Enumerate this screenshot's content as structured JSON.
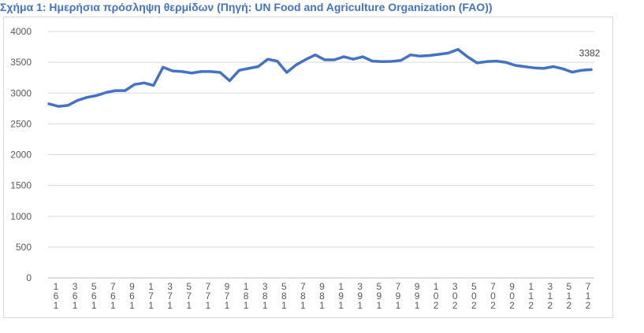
{
  "chart_data": {
    "type": "line",
    "title": "Σχήμα 1: Ημερήσια πρόσληψη θερμίδων (Πηγή: UN Food and Agriculture Organization (FAO))",
    "xlabel": "",
    "ylabel": "",
    "ylim": [
      0,
      4000
    ],
    "yticks": [
      0,
      500,
      1000,
      1500,
      2000,
      2500,
      3000,
      3500,
      4000
    ],
    "grid": "horizontal",
    "legend": "none",
    "line_color": "#4472C4",
    "tick_labels": [
      [
        "1",
        "6",
        "1"
      ],
      [
        "3",
        "6",
        "1"
      ],
      [
        "5",
        "6",
        "1"
      ],
      [
        "7",
        "6",
        "1"
      ],
      [
        "9",
        "6",
        "1"
      ],
      [
        "1",
        "7",
        "1"
      ],
      [
        "3",
        "7",
        "1"
      ],
      [
        "5",
        "7",
        "1"
      ],
      [
        "7",
        "7",
        "1"
      ],
      [
        "9",
        "7",
        "1"
      ],
      [
        "1",
        "8",
        "1"
      ],
      [
        "3",
        "8",
        "1"
      ],
      [
        "5",
        "8",
        "1"
      ],
      [
        "7",
        "8",
        "1"
      ],
      [
        "9",
        "8",
        "1"
      ],
      [
        "1",
        "9",
        "1"
      ],
      [
        "3",
        "9",
        "1"
      ],
      [
        "5",
        "9",
        "1"
      ],
      [
        "7",
        "9",
        "1"
      ],
      [
        "9",
        "9",
        "1"
      ],
      [
        "1",
        "0",
        "2"
      ],
      [
        "3",
        "0",
        "2"
      ],
      [
        "5",
        "0",
        "2"
      ],
      [
        "7",
        "0",
        "2"
      ],
      [
        "9",
        "0",
        "2"
      ],
      [
        "1",
        "1",
        "2"
      ],
      [
        "3",
        "1",
        "2"
      ],
      [
        "5",
        "1",
        "2"
      ],
      [
        "7",
        "1",
        "2"
      ]
    ],
    "series": [
      {
        "values": [
          2825,
          2785,
          2800,
          2880,
          2930,
          2960,
          3010,
          3040,
          3040,
          3140,
          3165,
          3125,
          3420,
          3360,
          3350,
          3325,
          3350,
          3350,
          3335,
          3200,
          3370,
          3400,
          3430,
          3550,
          3520,
          3335,
          3460,
          3545,
          3620,
          3540,
          3540,
          3590,
          3550,
          3590,
          3520,
          3510,
          3515,
          3530,
          3620,
          3600,
          3610,
          3630,
          3650,
          3710,
          3590,
          3490,
          3510,
          3520,
          3500,
          3450,
          3430,
          3410,
          3400,
          3430,
          3395,
          3340,
          3370,
          3382
        ]
      }
    ],
    "data_labels": [
      "3382"
    ]
  }
}
